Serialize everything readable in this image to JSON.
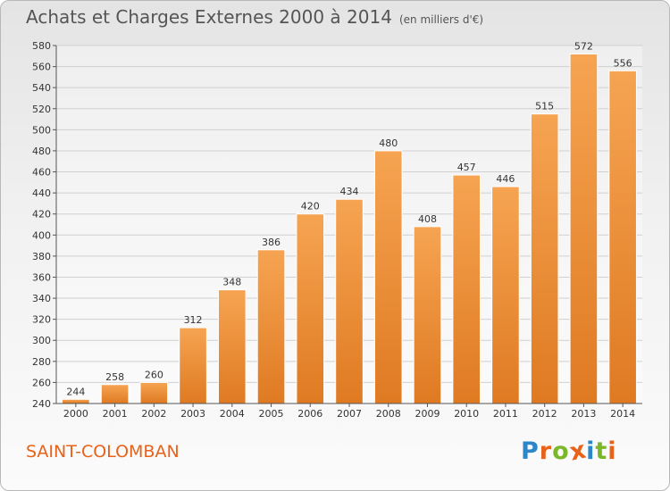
{
  "header": {
    "title": "Achats et Charges Externes 2000 à 2014",
    "subtitle": "(en milliers d'€)"
  },
  "footer": {
    "commune": "SAINT-COLOMBAN",
    "logo_text": "Proxiti",
    "logo_colors": [
      "#2d86c8",
      "#e8621a",
      "#7ab829",
      "#e8621a",
      "#2d86c8",
      "#7ab829",
      "#e8621a"
    ]
  },
  "colors": {
    "bar_light": "#f6a452",
    "bar_dark": "#df7a22",
    "grid": "#d0d0d0",
    "axis_text": "#333333"
  },
  "chart_data": {
    "type": "bar",
    "title": "Achats et Charges Externes 2000 à 2014",
    "subtitle": "(en milliers d'€)",
    "categories": [
      "2000",
      "2001",
      "2002",
      "2003",
      "2004",
      "2005",
      "2006",
      "2007",
      "2008",
      "2009",
      "2010",
      "2011",
      "2012",
      "2013",
      "2014"
    ],
    "values": [
      244,
      258,
      260,
      312,
      348,
      386,
      420,
      434,
      480,
      408,
      457,
      446,
      515,
      572,
      556
    ],
    "data_labels": [
      "244",
      "258",
      "260",
      "312",
      "348",
      "386",
      "420",
      "434",
      "480",
      "408",
      "457",
      "446",
      "515",
      "572",
      "556"
    ],
    "ylim": [
      240,
      580
    ],
    "yticks": [
      240,
      260,
      280,
      300,
      320,
      340,
      360,
      380,
      400,
      420,
      440,
      460,
      480,
      500,
      520,
      540,
      560,
      580
    ],
    "grid": true,
    "legend": "none"
  }
}
